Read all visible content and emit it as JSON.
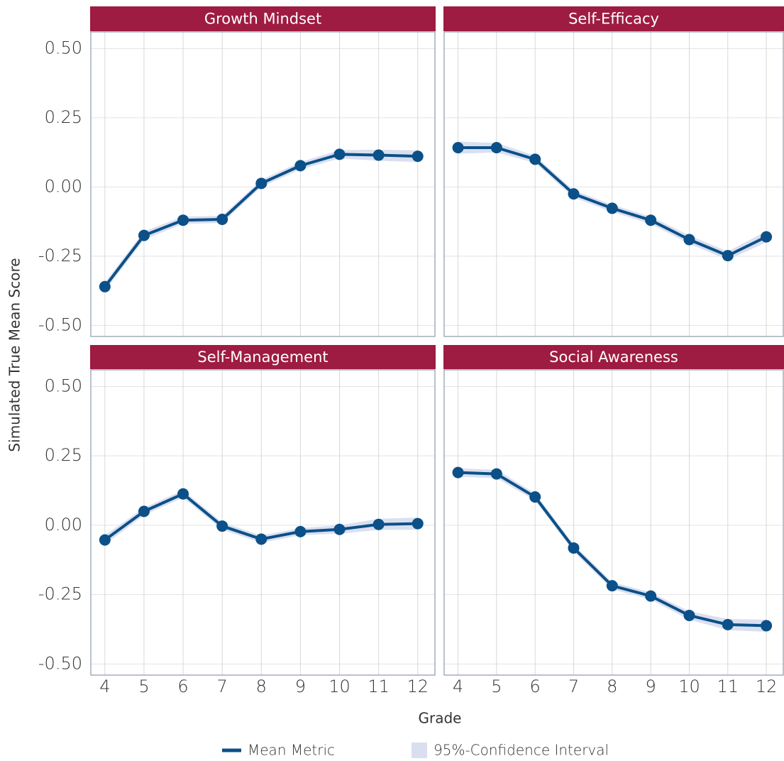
{
  "chart_data": {
    "type": "line",
    "x_label": "Grade",
    "y_label": "Simulated True Mean Score",
    "x": [
      4,
      5,
      6,
      7,
      8,
      9,
      10,
      11,
      12
    ],
    "xlim": [
      3.64,
      12.44
    ],
    "xticks": [
      4,
      5,
      6,
      7,
      8,
      9,
      10,
      11,
      12
    ],
    "ylim": [
      -0.54,
      0.56
    ],
    "yticks": [
      {
        "value": 0.5,
        "label": "0.50"
      },
      0.25,
      {
        "value": 0,
        "label": "0.00"
      },
      -0.25,
      {
        "value": -0.5,
        "label": "-0.50"
      }
    ],
    "grid": true,
    "line": {
      "name": "Mean Metric",
      "color": "#0b5088"
    },
    "band": {
      "name": "95%-Confidence Interval",
      "color": "#dadff0"
    },
    "panels": [
      {
        "title": "Growth Mindset",
        "values": [
          -0.36,
          -0.175,
          -0.12,
          -0.117,
          0.013,
          0.077,
          0.118,
          0.115,
          0.111
        ],
        "lower": [
          -0.375,
          -0.19,
          -0.133,
          -0.13,
          0.0,
          0.064,
          0.103,
          0.095,
          0.09
        ],
        "upper": [
          -0.345,
          -0.16,
          -0.107,
          -0.104,
          0.026,
          0.09,
          0.133,
          0.135,
          0.132
        ]
      },
      {
        "title": "Self-Efficacy",
        "values": [
          0.142,
          0.142,
          0.1,
          -0.025,
          -0.077,
          -0.12,
          -0.19,
          -0.248,
          -0.18
        ],
        "lower": [
          0.12,
          0.125,
          0.087,
          -0.038,
          -0.09,
          -0.133,
          -0.205,
          -0.263,
          -0.2
        ],
        "upper": [
          0.164,
          0.159,
          0.113,
          -0.012,
          -0.064,
          -0.107,
          -0.175,
          -0.233,
          -0.16
        ]
      },
      {
        "title": "Self-Management",
        "values": [
          -0.053,
          0.05,
          0.113,
          -0.003,
          -0.05,
          -0.023,
          -0.015,
          0.003,
          0.006
        ],
        "lower": [
          -0.07,
          0.037,
          0.1,
          -0.016,
          -0.063,
          -0.036,
          -0.03,
          -0.017,
          -0.016
        ],
        "upper": [
          -0.036,
          0.063,
          0.126,
          0.01,
          -0.037,
          -0.01,
          0.0,
          0.023,
          0.028
        ]
      },
      {
        "title": "Social Awareness",
        "values": [
          0.19,
          0.185,
          0.102,
          -0.082,
          -0.218,
          -0.255,
          -0.325,
          -0.358,
          -0.362
        ],
        "lower": [
          0.175,
          0.17,
          0.089,
          -0.095,
          -0.231,
          -0.268,
          -0.34,
          -0.378,
          -0.384
        ],
        "upper": [
          0.205,
          0.2,
          0.115,
          -0.069,
          -0.205,
          -0.242,
          -0.31,
          -0.338,
          -0.34
        ]
      }
    ]
  }
}
